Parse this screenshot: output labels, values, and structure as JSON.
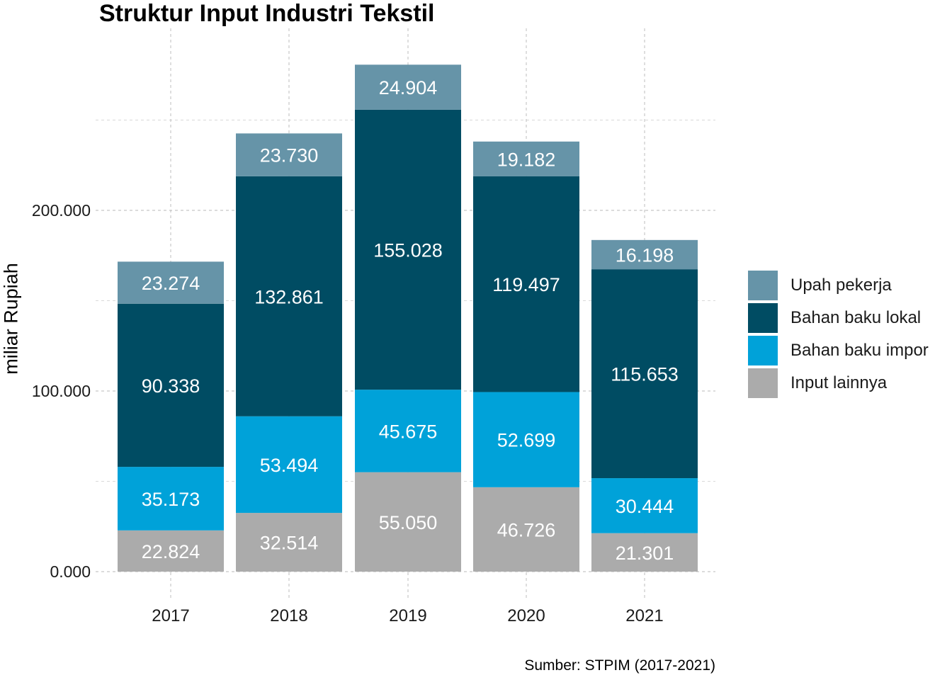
{
  "chart_data": {
    "type": "bar",
    "stacked": true,
    "title": "Struktur Input Industri Tekstil",
    "ylabel": "miliar Rupiah",
    "xlabel": "",
    "caption": "Sumber: STPIM (2017-2021)",
    "categories": [
      "2017",
      "2018",
      "2019",
      "2020",
      "2021"
    ],
    "ylim": [
      0,
      280000
    ],
    "yticks": [
      0,
      100000,
      200000
    ],
    "ytick_labels": [
      "0.000",
      "100.000",
      "200.000"
    ],
    "grid": true,
    "legend_position": "right",
    "series": [
      {
        "name": "Input lainnya",
        "color": "#ABABAB",
        "values": [
          22824,
          32514,
          55050,
          46726,
          21301
        ],
        "labels": [
          "22.824",
          "32.514",
          "55.050",
          "46.726",
          "21.301"
        ]
      },
      {
        "name": "Bahan baku impor",
        "color": "#00A2D9",
        "values": [
          35173,
          53494,
          45675,
          52699,
          30444
        ],
        "labels": [
          "35.173",
          "53.494",
          "45.675",
          "52.699",
          "30.444"
        ]
      },
      {
        "name": "Bahan baku lokal",
        "color": "#004C63",
        "values": [
          90338,
          132861,
          155028,
          119497,
          115653
        ],
        "labels": [
          "90.338",
          "132.861",
          "155.028",
          "119.497",
          "115.653"
        ]
      },
      {
        "name": "Upah pekerja",
        "color": "#6694A8",
        "values": [
          23274,
          23730,
          24904,
          19182,
          16198
        ],
        "labels": [
          "23.274",
          "23.730",
          "24.904",
          "19.182",
          "16.198"
        ]
      }
    ],
    "legend_order": [
      "Upah pekerja",
      "Bahan baku lokal",
      "Bahan baku impor",
      "Input lainnya"
    ]
  }
}
